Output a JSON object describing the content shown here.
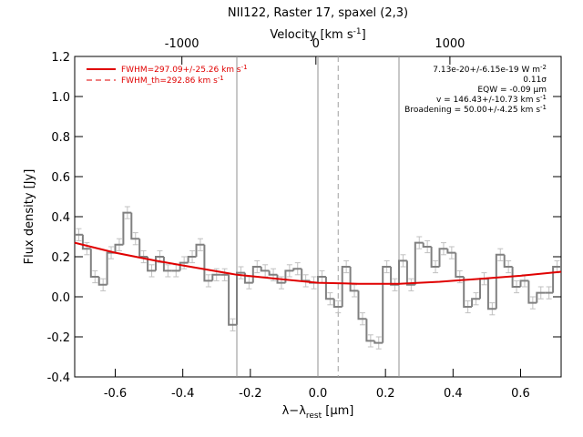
{
  "chart_data": {
    "type": "histogram",
    "title": "NII122, Raster 17, spaxel (2,3)",
    "x_label": {
      "text": "λ−λ",
      "sub": "rest",
      "after": " [µm]"
    },
    "y_label": "Flux density [Jy]",
    "top_label": {
      "text": "Velocity [km s",
      "sup": "-1",
      "after": "]"
    },
    "xlim": [
      -0.72,
      0.72
    ],
    "xticks": [
      -0.6,
      -0.4,
      -0.2,
      {
        "value": 0,
        "label": "0.0"
      },
      0.2,
      0.4,
      0.6
    ],
    "ylim": [
      -0.4,
      1.2
    ],
    "yticks": [
      -0.4,
      -0.2,
      {
        "value": 0,
        "label": "0.0"
      },
      0.2,
      0.4,
      0.6,
      0.8,
      {
        "value": 1,
        "label": "1.0"
      },
      1.2
    ],
    "top_xlim": [
      -1800,
      1830
    ],
    "top_xticks": [
      -1000,
      0,
      1000
    ],
    "bins": [
      -0.72,
      -0.696,
      -0.672,
      -0.648,
      -0.624,
      -0.6,
      -0.576,
      -0.552,
      -0.528,
      -0.504,
      -0.48,
      -0.456,
      -0.432,
      -0.408,
      -0.384,
      -0.36,
      -0.336,
      -0.312,
      -0.288,
      -0.264,
      -0.24,
      -0.216,
      -0.192,
      -0.168,
      -0.144,
      -0.12,
      -0.096,
      -0.072,
      -0.048,
      -0.024,
      0,
      0.024,
      0.048,
      0.072,
      0.096,
      0.12,
      0.144,
      0.168,
      0.192,
      0.216,
      0.24,
      0.264,
      0.288,
      0.312,
      0.336,
      0.36,
      0.384,
      0.408,
      0.432,
      0.456,
      0.48,
      0.504,
      0.528,
      0.552,
      0.576,
      0.6,
      0.624,
      0.648,
      0.672,
      0.696,
      0.72
    ],
    "values": [
      0.31,
      0.24,
      0.1,
      0.06,
      0.22,
      0.26,
      0.42,
      0.29,
      0.2,
      0.13,
      0.2,
      0.13,
      0.13,
      0.17,
      0.2,
      0.26,
      0.08,
      0.11,
      0.11,
      -0.14,
      0.12,
      0.07,
      0.15,
      0.13,
      0.11,
      0.07,
      0.13,
      0.14,
      0.08,
      0.07,
      0.1,
      -0.01,
      -0.05,
      0.15,
      0.03,
      -0.11,
      -0.22,
      -0.23,
      0.15,
      0.06,
      0.18,
      0.06,
      0.27,
      0.25,
      0.15,
      0.24,
      0.22,
      0.1,
      -0.05,
      -0.01,
      0.09,
      -0.06,
      0.21,
      0.15,
      0.05,
      0.08,
      -0.03,
      0.02,
      0.02,
      0.15
    ],
    "errors": [
      0.03,
      0.03,
      0.03,
      0.03,
      0.03,
      0.03,
      0.03,
      0.03,
      0.03,
      0.03,
      0.03,
      0.03,
      0.03,
      0.03,
      0.03,
      0.03,
      0.03,
      0.03,
      0.03,
      0.03,
      0.03,
      0.03,
      0.03,
      0.03,
      0.03,
      0.03,
      0.03,
      0.03,
      0.03,
      0.03,
      0.03,
      0.03,
      0.03,
      0.03,
      0.03,
      0.03,
      0.03,
      0.03,
      0.03,
      0.03,
      0.03,
      0.03,
      0.03,
      0.03,
      0.03,
      0.03,
      0.03,
      0.03,
      0.03,
      0.03,
      0.03,
      0.03,
      0.03,
      0.03,
      0.03,
      0.03,
      0.03,
      0.03,
      0.03,
      0.03
    ],
    "color": "#808080",
    "error_color": "#c0c0c0",
    "fit": {
      "name": "FWHM=297.09+/-25.26 km s",
      "sup": "-1",
      "color": "#e00000",
      "x": [
        -0.72,
        -0.6,
        -0.48,
        -0.36,
        -0.24,
        -0.12,
        0,
        0.12,
        0.24,
        0.36,
        0.48,
        0.6,
        0.72
      ],
      "y": [
        0.27,
        0.22,
        0.18,
        0.145,
        0.11,
        0.09,
        0.07,
        0.065,
        0.065,
        0.075,
        0.09,
        0.105,
        0.125
      ]
    },
    "fit_th": {
      "name": "FWHM_th=292.86 km s",
      "sup": "-1",
      "color": "#e00000"
    },
    "vlines": [
      -0.24,
      0,
      0.24
    ],
    "dashed_vline": 0.06,
    "annotations": [
      {
        "text": "7.13e-20+/-6.15e-19 W m",
        "sup": "-2"
      },
      {
        "text": "0.11σ"
      },
      {
        "text": "EQW = -0.09 µm"
      },
      {
        "text": "v = 146.43+/-10.73 km s",
        "sup": "-1"
      },
      {
        "text": "Broadening = 50.00+/-4.25 km s",
        "sup": "-1"
      }
    ]
  }
}
